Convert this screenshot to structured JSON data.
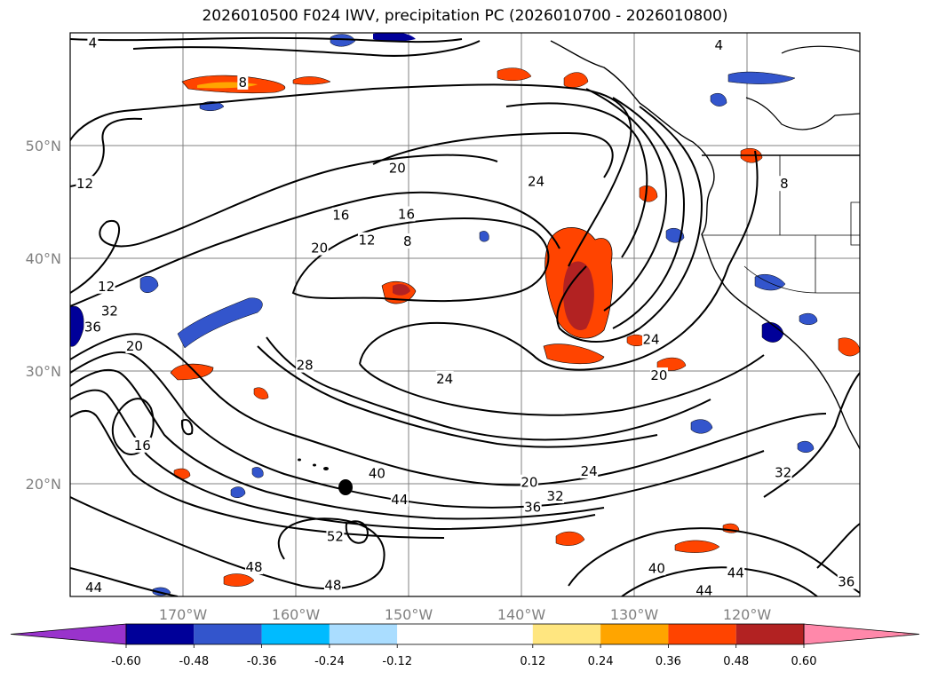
{
  "chart_data": {
    "type": "contour",
    "title": "2026010500 F024 IWV, precipitation PC (2026010700 - 2026010800)",
    "x_axis": {
      "range": [
        -180,
        -110
      ],
      "ticks": [
        -170,
        -160,
        -150,
        -140,
        -130,
        -120
      ],
      "tick_labels": [
        "170°W",
        "160°W",
        "150°W",
        "140°W",
        "130°W",
        "120°W"
      ]
    },
    "y_axis": {
      "range": [
        10,
        60
      ],
      "ticks": [
        20,
        30,
        40,
        50
      ],
      "tick_labels": [
        "20°N",
        "30°N",
        "40°N",
        "50°N"
      ]
    },
    "grid": true,
    "contour_labels": [
      {
        "text": "4",
        "lon": -178.0,
        "lat": 59.1
      },
      {
        "text": "8",
        "lon": -164.7,
        "lat": 55.6
      },
      {
        "text": "12",
        "lon": -178.7,
        "lat": 46.6
      },
      {
        "text": "16",
        "lon": -156.0,
        "lat": 43.8
      },
      {
        "text": "20",
        "lon": -151.0,
        "lat": 48.0
      },
      {
        "text": "16",
        "lon": -150.2,
        "lat": 43.9
      },
      {
        "text": "8",
        "lon": -150.1,
        "lat": 41.5
      },
      {
        "text": "12",
        "lon": -153.7,
        "lat": 41.6
      },
      {
        "text": "20",
        "lon": -157.9,
        "lat": 40.9
      },
      {
        "text": "24",
        "lon": -138.7,
        "lat": 46.8
      },
      {
        "text": "12",
        "lon": -176.8,
        "lat": 37.5
      },
      {
        "text": "32",
        "lon": -176.5,
        "lat": 35.3
      },
      {
        "text": "36",
        "lon": -178.0,
        "lat": 33.9
      },
      {
        "text": "20",
        "lon": -174.3,
        "lat": 32.2
      },
      {
        "text": "28",
        "lon": -159.2,
        "lat": 30.5
      },
      {
        "text": "24",
        "lon": -146.8,
        "lat": 29.3
      },
      {
        "text": "16",
        "lon": -173.6,
        "lat": 23.4
      },
      {
        "text": "24",
        "lon": -128.5,
        "lat": 32.8
      },
      {
        "text": "20",
        "lon": -127.8,
        "lat": 29.6
      },
      {
        "text": "40",
        "lon": -152.8,
        "lat": 20.9
      },
      {
        "text": "44",
        "lon": -150.8,
        "lat": 18.6
      },
      {
        "text": "20",
        "lon": -139.3,
        "lat": 20.1
      },
      {
        "text": "24",
        "lon": -134.0,
        "lat": 21.1
      },
      {
        "text": "32",
        "lon": -137.0,
        "lat": 18.9
      },
      {
        "text": "36",
        "lon": -139.0,
        "lat": 17.9
      },
      {
        "text": "32",
        "lon": -116.8,
        "lat": 21.0
      },
      {
        "text": "52",
        "lon": -156.5,
        "lat": 15.3
      },
      {
        "text": "48",
        "lon": -163.7,
        "lat": 12.6
      },
      {
        "text": "48",
        "lon": -156.7,
        "lat": 11.0
      },
      {
        "text": "44",
        "lon": -177.9,
        "lat": 10.8
      },
      {
        "text": "40",
        "lon": -128.0,
        "lat": 12.5
      },
      {
        "text": "44",
        "lon": -121.0,
        "lat": 12.1
      },
      {
        "text": "44",
        "lon": -123.8,
        "lat": 10.5
      },
      {
        "text": "36",
        "lon": -111.2,
        "lat": 11.3
      },
      {
        "text": "4",
        "lon": -122.5,
        "lat": 58.9
      },
      {
        "text": "8",
        "lon": -116.7,
        "lat": 46.6
      }
    ],
    "colorbar": {
      "ticks": [
        "-0.60",
        "-0.48",
        "-0.36",
        "-0.24",
        "-0.12",
        "0.12",
        "0.24",
        "0.36",
        "0.48",
        "0.60"
      ],
      "levels": [
        -0.6,
        -0.48,
        -0.36,
        -0.24,
        -0.12,
        0.12,
        0.24,
        0.36,
        0.48,
        0.6
      ],
      "colors": [
        "#9933cc",
        "#000099",
        "#3355cc",
        "#00bbff",
        "#aaddff",
        "#ffffff",
        "#ffe680",
        "#ffa500",
        "#ff4400",
        "#b22222",
        "#ff88aa"
      ],
      "extend": "both"
    }
  }
}
